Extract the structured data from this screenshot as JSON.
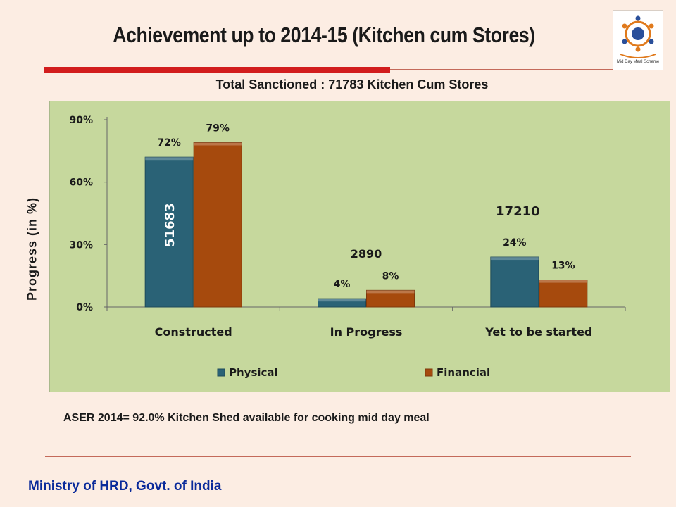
{
  "header": {
    "title": "Achievement up to 2014-15 (Kitchen cum Stores)",
    "logo_text": "Mid Day Meal Scheme"
  },
  "subtitle": "Total Sanctioned : 71783 Kitchen Cum Stores",
  "note": "ASER 2014= 92.0% Kitchen Shed available for cooking mid day meal",
  "footer": "Ministry of HRD, Govt. of India",
  "colors": {
    "physical": "#2a6276",
    "financial": "#a64a0d",
    "panel": "#c6d89d",
    "accent_red": "#d21d1d",
    "footer": "#0a2a9a"
  },
  "chart_data": {
    "type": "bar",
    "title": "",
    "xlabel": "",
    "ylabel": "Progress (in %)",
    "categories": [
      "Constructed",
      "In Progress",
      "Yet to be started"
    ],
    "series": [
      {
        "name": "Physical",
        "values": [
          72,
          4,
          24
        ],
        "labels": [
          "72%",
          "4%",
          "24%"
        ]
      },
      {
        "name": "Financial",
        "values": [
          79,
          8,
          13
        ],
        "labels": [
          "79%",
          "8%",
          "13%"
        ]
      }
    ],
    "counts": [
      "51683",
      "2890",
      "17210"
    ],
    "ylim": [
      0,
      90
    ],
    "yticks": [
      "0%",
      "30%",
      "60%",
      "90%"
    ],
    "ytick_values": [
      0,
      30,
      60,
      90
    ],
    "legend_position": "bottom",
    "grid": false
  }
}
